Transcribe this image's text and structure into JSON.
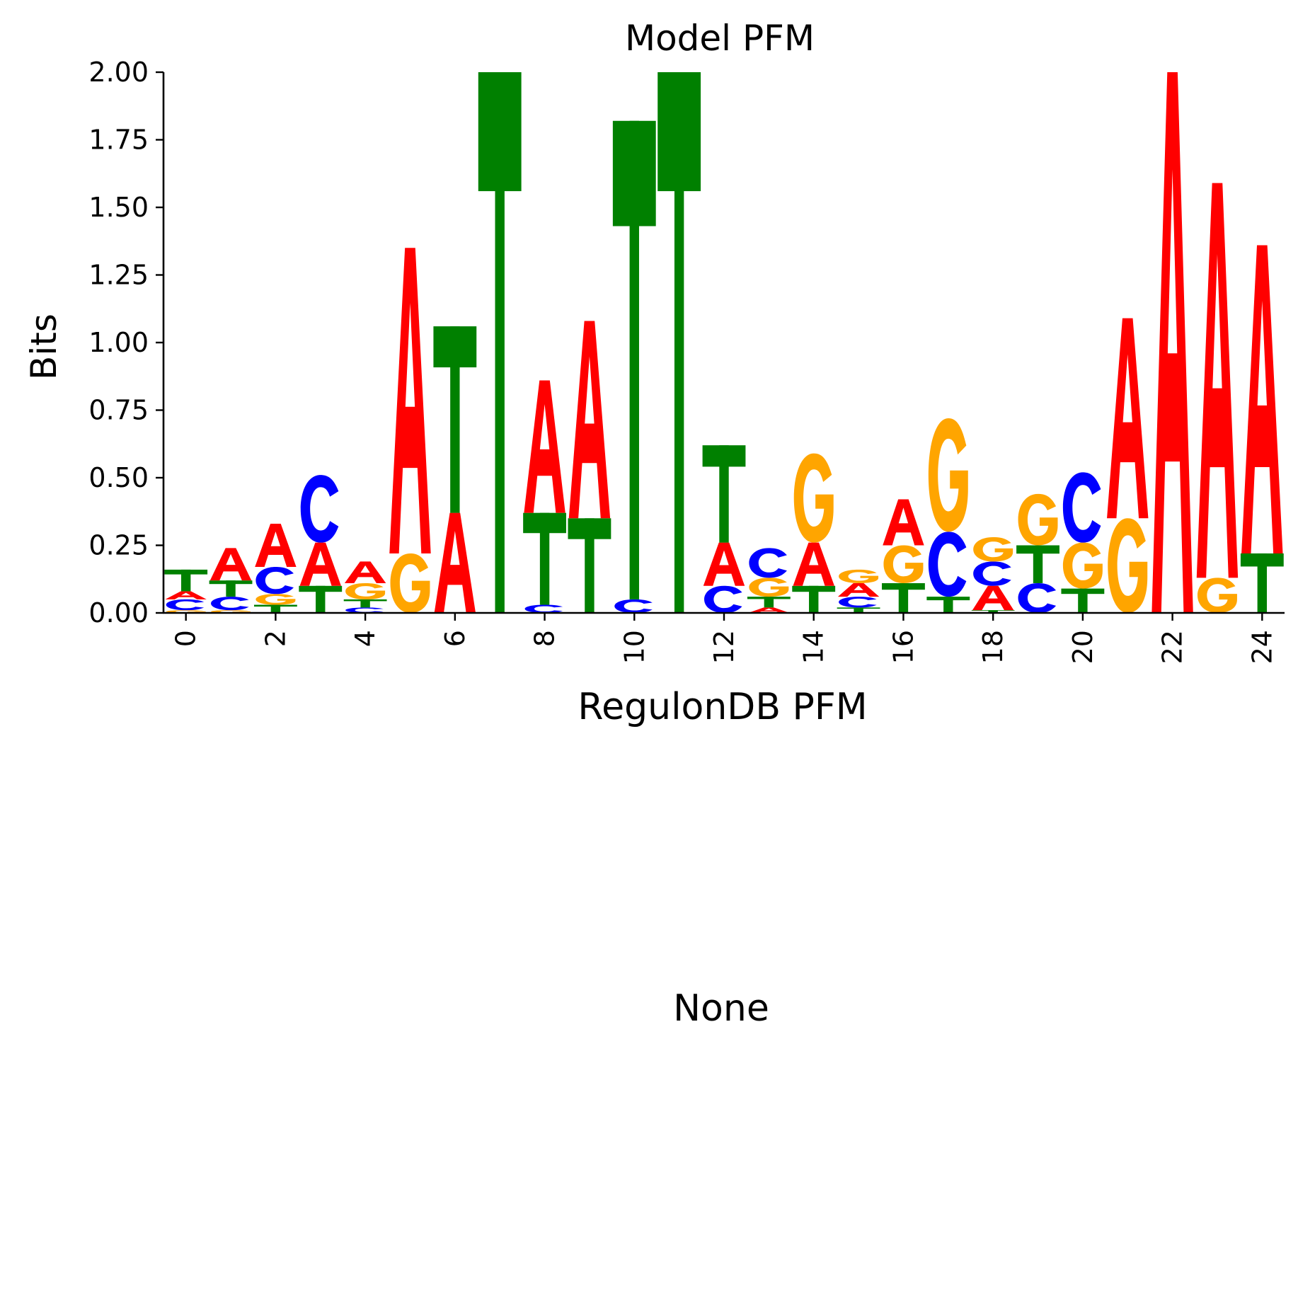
{
  "figure": {
    "title": "Model PFM",
    "second_panel_title": "None"
  },
  "colors": {
    "A": "#ff0000",
    "C": "#0000ff",
    "G": "#ffa500",
    "T": "#008000"
  },
  "chart_data": {
    "type": "sequence-logo",
    "title": "Model PFM",
    "xlabel": "RegulonDB PFM",
    "ylabel": "Bits",
    "ylim": [
      0,
      2.0
    ],
    "xlim": [
      -0.5,
      24.5
    ],
    "yticks": [
      "0.00",
      "0.25",
      "0.50",
      "0.75",
      "1.00",
      "1.25",
      "1.50",
      "1.75",
      "2.00"
    ],
    "xticks": [
      "0",
      "2",
      "4",
      "6",
      "8",
      "10",
      "12",
      "14",
      "16",
      "18",
      "20",
      "22",
      "24"
    ],
    "grid": false,
    "positions": [
      {
        "pos": 0,
        "stack": [
          [
            "G",
            0.01
          ],
          [
            "C",
            0.04
          ],
          [
            "A",
            0.03
          ],
          [
            "T",
            0.08
          ]
        ]
      },
      {
        "pos": 1,
        "stack": [
          [
            "G",
            0.01
          ],
          [
            "C",
            0.05
          ],
          [
            "T",
            0.06
          ],
          [
            "A",
            0.12
          ]
        ]
      },
      {
        "pos": 2,
        "stack": [
          [
            "T",
            0.03
          ],
          [
            "G",
            0.04
          ],
          [
            "C",
            0.1
          ],
          [
            "A",
            0.16
          ]
        ]
      },
      {
        "pos": 3,
        "stack": [
          [
            "T",
            0.1
          ],
          [
            "A",
            0.16
          ],
          [
            "C",
            0.25
          ]
        ]
      },
      {
        "pos": 4,
        "stack": [
          [
            "C",
            0.02
          ],
          [
            "T",
            0.03
          ],
          [
            "G",
            0.06
          ],
          [
            "A",
            0.08
          ]
        ]
      },
      {
        "pos": 5,
        "stack": [
          [
            "G",
            0.22
          ],
          [
            "A",
            1.13
          ]
        ]
      },
      {
        "pos": 6,
        "stack": [
          [
            "A",
            0.37
          ],
          [
            "T",
            0.69
          ]
        ]
      },
      {
        "pos": 7,
        "stack": [
          [
            "T",
            2.0
          ]
        ]
      },
      {
        "pos": 8,
        "stack": [
          [
            "C",
            0.03
          ],
          [
            "T",
            0.34
          ],
          [
            "A",
            0.49
          ]
        ]
      },
      {
        "pos": 9,
        "stack": [
          [
            "T",
            0.35
          ],
          [
            "A",
            0.73
          ]
        ]
      },
      {
        "pos": 10,
        "stack": [
          [
            "C",
            0.05
          ],
          [
            "T",
            1.77
          ]
        ]
      },
      {
        "pos": 11,
        "stack": [
          [
            "T",
            2.0
          ]
        ]
      },
      {
        "pos": 12,
        "stack": [
          [
            "C",
            0.1
          ],
          [
            "A",
            0.16
          ],
          [
            "T",
            0.36
          ]
        ]
      },
      {
        "pos": 13,
        "stack": [
          [
            "A",
            0.02
          ],
          [
            "T",
            0.04
          ],
          [
            "G",
            0.07
          ],
          [
            "C",
            0.11
          ]
        ]
      },
      {
        "pos": 14,
        "stack": [
          [
            "T",
            0.1
          ],
          [
            "A",
            0.16
          ],
          [
            "G",
            0.33
          ]
        ]
      },
      {
        "pos": 15,
        "stack": [
          [
            "T",
            0.02
          ],
          [
            "C",
            0.04
          ],
          [
            "A",
            0.05
          ],
          [
            "G",
            0.05
          ]
        ]
      },
      {
        "pos": 16,
        "stack": [
          [
            "T",
            0.11
          ],
          [
            "G",
            0.14
          ],
          [
            "A",
            0.17
          ]
        ]
      },
      {
        "pos": 17,
        "stack": [
          [
            "T",
            0.06
          ],
          [
            "C",
            0.24
          ],
          [
            "G",
            0.42
          ]
        ]
      },
      {
        "pos": 18,
        "stack": [
          [
            "T",
            0.01
          ],
          [
            "A",
            0.09
          ],
          [
            "C",
            0.09
          ],
          [
            "G",
            0.09
          ]
        ]
      },
      {
        "pos": 19,
        "stack": [
          [
            "C",
            0.11
          ],
          [
            "T",
            0.14
          ],
          [
            "G",
            0.19
          ]
        ]
      },
      {
        "pos": 20,
        "stack": [
          [
            "T",
            0.09
          ],
          [
            "G",
            0.17
          ],
          [
            "C",
            0.26
          ]
        ]
      },
      {
        "pos": 21,
        "stack": [
          [
            "G",
            0.35
          ],
          [
            "A",
            0.74
          ]
        ]
      },
      {
        "pos": 22,
        "stack": [
          [
            "A",
            2.0
          ]
        ]
      },
      {
        "pos": 23,
        "stack": [
          [
            "G",
            0.13
          ],
          [
            "A",
            1.46
          ]
        ]
      },
      {
        "pos": 24,
        "stack": [
          [
            "T",
            0.22
          ],
          [
            "A",
            1.14
          ]
        ]
      }
    ]
  }
}
